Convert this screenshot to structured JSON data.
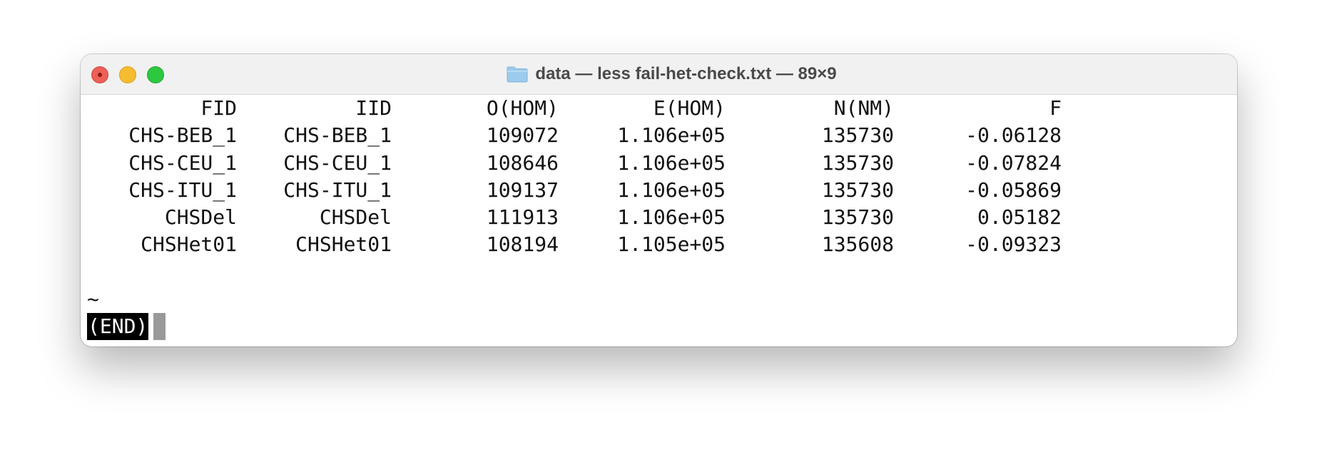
{
  "window": {
    "title": "data — less fail-het-check.txt — 89×9",
    "folder_icon": "folder-icon",
    "controls": [
      "close-button",
      "minimize-button",
      "zoom-button"
    ]
  },
  "table": {
    "headers": {
      "fid": "FID",
      "iid": "IID",
      "ohom": "O(HOM)",
      "ehom": "E(HOM)",
      "nnm": "N(NM)",
      "f": "F"
    },
    "rows": [
      {
        "fid": "CHS-BEB_1",
        "iid": "CHS-BEB_1",
        "ohom": "109072",
        "ehom": "1.106e+05",
        "nnm": "135730",
        "f": "-0.06128"
      },
      {
        "fid": "CHS-CEU_1",
        "iid": "CHS-CEU_1",
        "ohom": "108646",
        "ehom": "1.106e+05",
        "nnm": "135730",
        "f": "-0.07824"
      },
      {
        "fid": "CHS-ITU_1",
        "iid": "CHS-ITU_1",
        "ohom": "109137",
        "ehom": "1.106e+05",
        "nnm": "135730",
        "f": "-0.05869"
      },
      {
        "fid": "CHSDel",
        "iid": "CHSDel",
        "ohom": "111913",
        "ehom": "1.106e+05",
        "nnm": "135730",
        "f": "0.05182"
      },
      {
        "fid": "CHSHet01",
        "iid": "CHSHet01",
        "ohom": "108194",
        "ehom": "1.105e+05",
        "nnm": "135608",
        "f": "-0.09323"
      }
    ]
  },
  "filler": [
    "~",
    "~"
  ],
  "prompt": "(END)"
}
